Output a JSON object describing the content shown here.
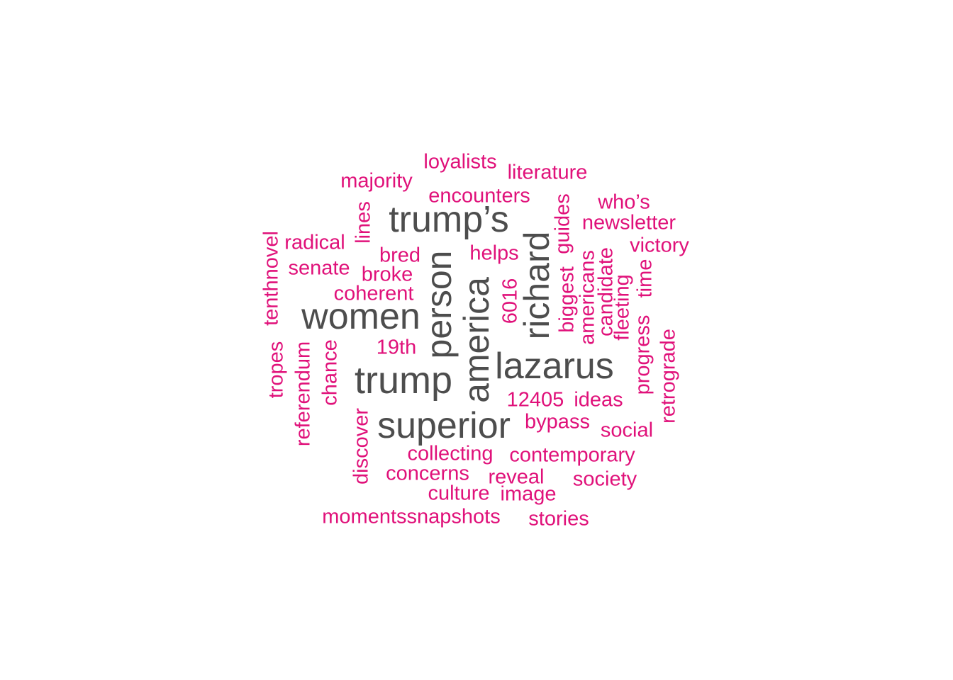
{
  "colors": {
    "major": "#4d4d4d",
    "minor": "#e0117a",
    "background": "#ffffff"
  },
  "words": {
    "trumps": "trump’s",
    "women": "women",
    "person": "person",
    "america": "america",
    "richard": "richard",
    "trump": "trump",
    "lazarus": "lazarus",
    "superior": "superior",
    "loyalists": "loyalists",
    "literature": "literature",
    "majority": "majority",
    "encounters": "encounters",
    "whos": "who’s",
    "newsletter": "newsletter",
    "lines": "lines",
    "guides": "guides",
    "radical": "radical",
    "tenthnovel": "tenthnovel",
    "bred": "bred",
    "helps": "helps",
    "victory": "victory",
    "senate": "senate",
    "broke": "broke",
    "americans": "americans",
    "candidate": "candidate",
    "coherent": "coherent",
    "biggest": "biggest",
    "fleeting": "fleeting",
    "time": "time",
    "n6016": "6016",
    "n19th": "19th",
    "tropes": "tropes",
    "referendum": "referendum",
    "chance": "chance",
    "progress": "progress",
    "retrograde": "retrograde",
    "n12405": "12405",
    "ideas": "ideas",
    "bypass": "bypass",
    "social": "social",
    "discover": "discover",
    "collecting": "collecting",
    "contemporary": "contemporary",
    "concerns": "concerns",
    "reveal": "reveal",
    "society": "society",
    "culture": "culture",
    "image": "image",
    "momentssnapshots": "momentssnapshots",
    "stories": "stories"
  }
}
